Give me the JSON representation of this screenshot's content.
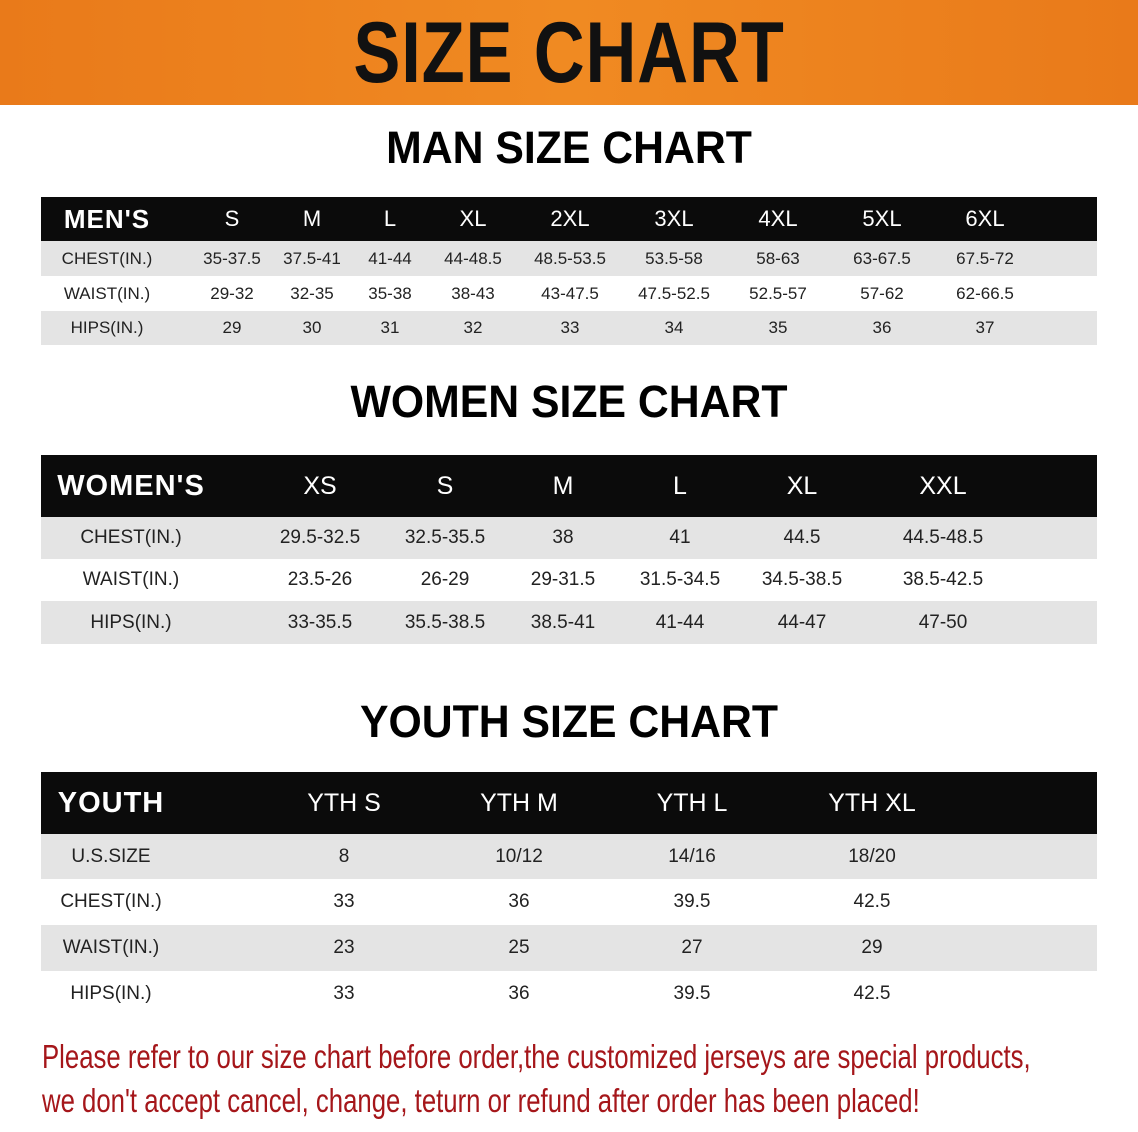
{
  "banner_title": "SIZE CHART",
  "men": {
    "title": "MAN SIZE CHART",
    "header": [
      "MEN'S",
      "S",
      "M",
      "L",
      "XL",
      "2XL",
      "3XL",
      "4XL",
      "5XL",
      "6XL"
    ],
    "rows": [
      [
        "CHEST(IN.)",
        "35-37.5",
        "37.5-41",
        "41-44",
        "44-48.5",
        "48.5-53.5",
        "53.5-58",
        "58-63",
        "63-67.5",
        "67.5-72"
      ],
      [
        "WAIST(IN.)",
        "29-32",
        "32-35",
        "35-38",
        "38-43",
        "43-47.5",
        "47.5-52.5",
        "52.5-57",
        "57-62",
        "62-66.5"
      ],
      [
        "HIPS(IN.)",
        "29",
        "30",
        "31",
        "32",
        "33",
        "34",
        "35",
        "36",
        "37"
      ]
    ]
  },
  "women": {
    "title": "WOMEN SIZE CHART",
    "header": [
      "WOMEN'S",
      "XS",
      "S",
      "M",
      "L",
      "XL",
      "XXL"
    ],
    "rows": [
      [
        "CHEST(IN.)",
        "29.5-32.5",
        "32.5-35.5",
        "38",
        "41",
        "44.5",
        "44.5-48.5"
      ],
      [
        "WAIST(IN.)",
        "23.5-26",
        "26-29",
        "29-31.5",
        "31.5-34.5",
        "34.5-38.5",
        "38.5-42.5"
      ],
      [
        "HIPS(IN.)",
        "33-35.5",
        "35.5-38.5",
        "38.5-41",
        "41-44",
        "44-47",
        "47-50"
      ]
    ]
  },
  "youth": {
    "title": "YOUTH SIZE CHART",
    "header": [
      "YOUTH",
      "YTH S",
      "YTH M",
      "YTH L",
      "YTH XL"
    ],
    "rows": [
      [
        "U.S.SIZE",
        "8",
        "10/12",
        "14/16",
        "18/20"
      ],
      [
        "CHEST(IN.)",
        "33",
        "36",
        "39.5",
        "42.5"
      ],
      [
        "WAIST(IN.)",
        "23",
        "25",
        "27",
        "29"
      ],
      [
        "HIPS(IN.)",
        "33",
        "36",
        "39.5",
        "42.5"
      ]
    ]
  },
  "note": {
    "line1": "Please refer to our size chart before order,the customized jerseys are special products,",
    "line2": "we don't accept cancel, change, teturn or refund after order has been placed!"
  },
  "colors": {
    "banner": "#e97a1a",
    "header_row": "#0b0b0b",
    "gray_row": "#e4e4e4",
    "note": "#a5161a"
  }
}
